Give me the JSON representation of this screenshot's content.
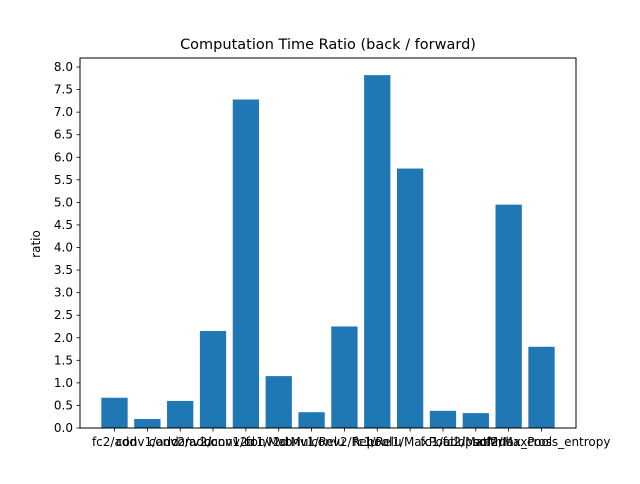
{
  "chart_data": {
    "type": "bar",
    "title": "Computation Time Ratio (back / forward)",
    "xlabel": "",
    "ylabel": "ratio",
    "ylim": [
      0,
      8.2
    ],
    "yticks": [
      "0.0",
      "0.5",
      "1.0",
      "1.5",
      "2.0",
      "2.5",
      "3.0",
      "3.5",
      "4.0",
      "4.5",
      "5.0",
      "5.5",
      "6.0",
      "6.5",
      "7.0",
      "7.5",
      "8.0"
    ],
    "categories": [
      "fc2/add",
      "conv1/add",
      "conv2/add",
      "conv2/conv2d",
      "conv1/conv2d",
      "fc1/MatMul",
      "conv1/Relu",
      "conv2/Relu",
      "fc1/Relu",
      "pool1/MaxPool",
      "fc1/add",
      "fc2/MatMul",
      "pool2/MaxPool",
      "softmax_cross_entropy"
    ],
    "values": [
      0.67,
      0.2,
      0.6,
      2.15,
      7.28,
      1.15,
      0.35,
      2.25,
      7.82,
      5.75,
      0.38,
      0.33,
      4.95,
      1.8
    ],
    "grid": false,
    "legend": "none",
    "bar_color": "#1f77b4"
  }
}
